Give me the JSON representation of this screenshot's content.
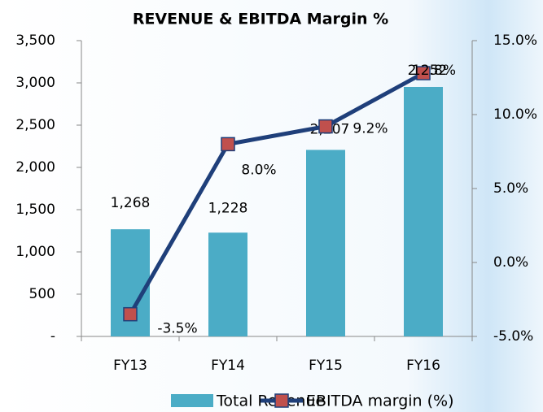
{
  "chart_data": {
    "type": "bar_line",
    "title": "REVENUE & EBITDA Margin %",
    "categories": [
      "FY13",
      "FY14",
      "FY15",
      "FY16"
    ],
    "series": [
      {
        "name": "Total Revenue",
        "type": "bar",
        "color": "#4bacc6",
        "values": [
          1268,
          1228,
          2207,
          2952
        ],
        "value_labels": [
          "1,268",
          "1,228",
          "2,207",
          "2,952"
        ]
      },
      {
        "name": "EBITDA margin (%)",
        "type": "line",
        "axis": "y2",
        "color": "#1f3f7a",
        "marker_color": "#c0504d",
        "values": [
          -3.5,
          8.0,
          9.2,
          12.8
        ],
        "value_labels": [
          "-3.5%",
          "8.0%",
          "9.2%",
          "12.8%"
        ]
      }
    ],
    "ylim": [
      0,
      3500
    ],
    "yticks": [
      {
        "value": 0,
        "label": "-"
      },
      500,
      {
        "value": 1000,
        "label": "1,000"
      },
      {
        "value": 1500,
        "label": "1,500"
      },
      {
        "value": 2000,
        "label": "2,000"
      },
      {
        "value": 2500,
        "label": "2,500"
      },
      {
        "value": 3000,
        "label": "3,000"
      },
      {
        "value": 3500,
        "label": "3,500"
      }
    ],
    "y2lim": [
      -5,
      15
    ],
    "y2ticks": [
      {
        "value": -5,
        "label": "-5.0%"
      },
      {
        "value": 0,
        "label": "0.0%"
      },
      {
        "value": 5,
        "label": "5.0%"
      },
      {
        "value": 10,
        "label": "10.0%"
      },
      {
        "value": 15,
        "label": "15.0%"
      }
    ],
    "legend": "bottom"
  }
}
